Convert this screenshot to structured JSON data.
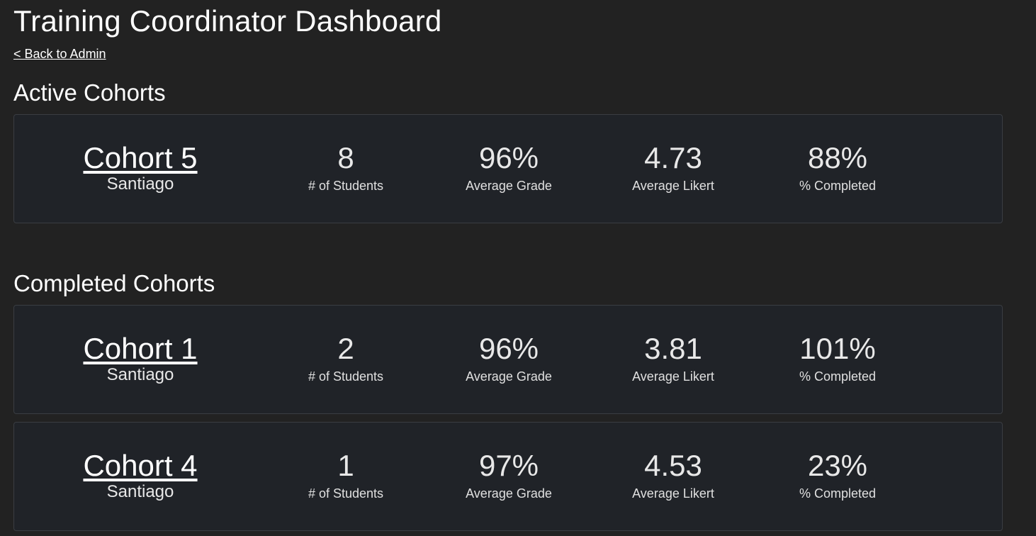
{
  "header": {
    "title": "Training Coordinator Dashboard",
    "back_link": "< Back to Admin"
  },
  "active": {
    "title": "Active Cohorts",
    "cohorts": [
      {
        "name": "Cohort 5",
        "city": "Santiago",
        "students": "8",
        "students_label": "# of Students",
        "grade": "96%",
        "grade_label": "Average Grade",
        "likert": "4.73",
        "likert_label": "Average Likert",
        "completed": "88%",
        "completed_label": "% Completed"
      }
    ]
  },
  "completed": {
    "title": "Completed Cohorts",
    "cohorts": [
      {
        "name": "Cohort 1",
        "city": "Santiago",
        "students": "2",
        "students_label": "# of Students",
        "grade": "96%",
        "grade_label": "Average Grade",
        "likert": "3.81",
        "likert_label": "Average Likert",
        "completed": "101%",
        "completed_label": "% Completed"
      },
      {
        "name": "Cohort 4",
        "city": "Santiago",
        "students": "1",
        "students_label": "# of Students",
        "grade": "97%",
        "grade_label": "Average Grade",
        "likert": "4.53",
        "likert_label": "Average Likert",
        "completed": "23%",
        "completed_label": "% Completed"
      }
    ]
  },
  "colors": {
    "background": "#222222",
    "card": "#202328",
    "card_border": "#3a3d42",
    "text": "#ffffff"
  }
}
